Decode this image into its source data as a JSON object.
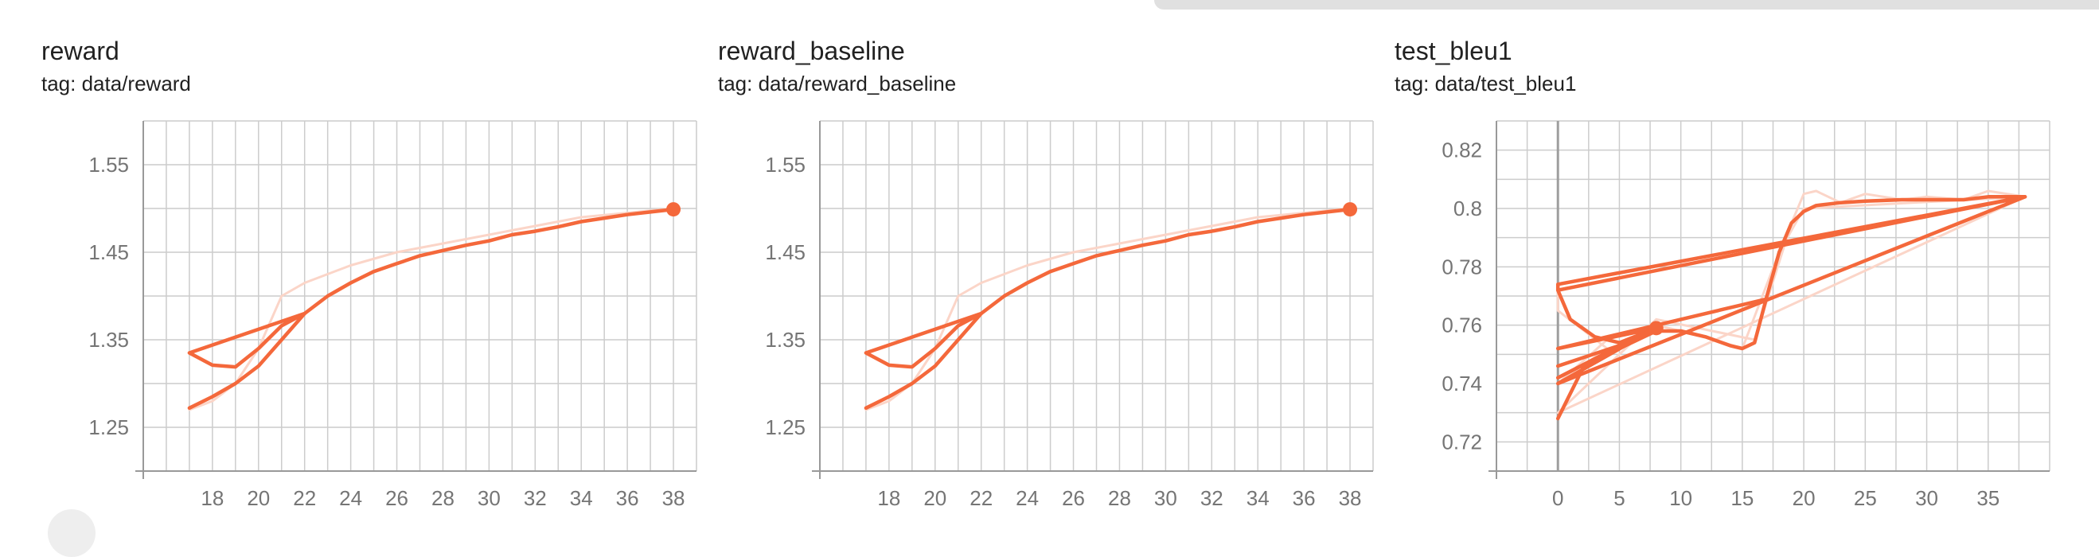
{
  "colors": {
    "line": "#f4683b",
    "line_light": "#fbd5c8",
    "grid": "#cccccc",
    "axis": "#999999",
    "text": "#757575"
  },
  "cards": [
    {
      "title": "reward",
      "tag": "tag: data/reward"
    },
    {
      "title": "reward_baseline",
      "tag": "tag: data/reward_baseline"
    },
    {
      "title": "test_bleu1",
      "tag": "tag: data/test_bleu1"
    }
  ],
  "chart_data": [
    {
      "type": "line",
      "title": "reward",
      "xlim": [
        15,
        39
      ],
      "ylim": [
        1.2,
        1.6
      ],
      "x_ticks": [
        18,
        20,
        22,
        24,
        26,
        28,
        30,
        32,
        34,
        36,
        38
      ],
      "y_ticks": [
        1.25,
        1.35,
        1.45,
        1.55
      ],
      "grid": true,
      "series": [
        {
          "role": "raw",
          "points": [
            [
              17,
              1.27
            ],
            [
              18,
              1.28
            ],
            [
              19,
              1.3
            ],
            [
              20,
              1.34
            ],
            [
              21,
              1.4
            ],
            [
              22,
              1.415
            ],
            [
              24,
              1.435
            ],
            [
              26,
              1.45
            ],
            [
              28,
              1.46
            ],
            [
              30,
              1.47
            ],
            [
              32,
              1.48
            ],
            [
              34,
              1.49
            ],
            [
              36,
              1.495
            ],
            [
              38,
              1.5
            ]
          ]
        },
        {
          "role": "smoothed",
          "points": [
            [
              17,
              1.272
            ],
            [
              18,
              1.285
            ],
            [
              19,
              1.3
            ],
            [
              20,
              1.32
            ],
            [
              21,
              1.35
            ],
            [
              22,
              1.38
            ],
            [
              23,
              1.4
            ],
            [
              24,
              1.415
            ],
            [
              25,
              1.428
            ],
            [
              26,
              1.437
            ],
            [
              27,
              1.446
            ],
            [
              28,
              1.452
            ],
            [
              29,
              1.458
            ],
            [
              30,
              1.463
            ],
            [
              31,
              1.47
            ],
            [
              32,
              1.474
            ],
            [
              33,
              1.479
            ],
            [
              34,
              1.485
            ],
            [
              35,
              1.489
            ],
            [
              36,
              1.493
            ],
            [
              37,
              1.496
            ],
            [
              38,
              1.499
            ]
          ]
        },
        {
          "role": "smoothed",
          "points": [
            [
              17,
              1.335
            ],
            [
              18,
              1.321
            ],
            [
              19,
              1.319
            ],
            [
              20,
              1.34
            ],
            [
              21,
              1.366
            ],
            [
              22,
              1.38
            ],
            [
              17,
              1.335
            ]
          ]
        }
      ],
      "marker": [
        38,
        1.499
      ]
    },
    {
      "type": "line",
      "title": "reward_baseline",
      "xlim": [
        15,
        39
      ],
      "ylim": [
        1.2,
        1.6
      ],
      "x_ticks": [
        18,
        20,
        22,
        24,
        26,
        28,
        30,
        32,
        34,
        36,
        38
      ],
      "y_ticks": [
        1.25,
        1.35,
        1.45,
        1.55
      ],
      "grid": true,
      "series": [
        {
          "role": "raw",
          "points": [
            [
              17,
              1.27
            ],
            [
              18,
              1.28
            ],
            [
              19,
              1.3
            ],
            [
              20,
              1.34
            ],
            [
              21,
              1.4
            ],
            [
              22,
              1.415
            ],
            [
              24,
              1.435
            ],
            [
              26,
              1.45
            ],
            [
              28,
              1.46
            ],
            [
              30,
              1.47
            ],
            [
              32,
              1.48
            ],
            [
              34,
              1.49
            ],
            [
              36,
              1.495
            ],
            [
              38,
              1.5
            ]
          ]
        },
        {
          "role": "smoothed",
          "points": [
            [
              17,
              1.272
            ],
            [
              18,
              1.285
            ],
            [
              19,
              1.3
            ],
            [
              20,
              1.32
            ],
            [
              21,
              1.35
            ],
            [
              22,
              1.38
            ],
            [
              23,
              1.4
            ],
            [
              24,
              1.415
            ],
            [
              25,
              1.428
            ],
            [
              26,
              1.437
            ],
            [
              27,
              1.446
            ],
            [
              28,
              1.452
            ],
            [
              29,
              1.458
            ],
            [
              30,
              1.463
            ],
            [
              31,
              1.47
            ],
            [
              32,
              1.474
            ],
            [
              33,
              1.479
            ],
            [
              34,
              1.485
            ],
            [
              35,
              1.489
            ],
            [
              36,
              1.493
            ],
            [
              37,
              1.496
            ],
            [
              38,
              1.499
            ]
          ]
        },
        {
          "role": "smoothed",
          "points": [
            [
              17,
              1.335
            ],
            [
              18,
              1.321
            ],
            [
              19,
              1.319
            ],
            [
              20,
              1.34
            ],
            [
              21,
              1.366
            ],
            [
              22,
              1.38
            ],
            [
              17,
              1.335
            ]
          ]
        }
      ],
      "marker": [
        38,
        1.499
      ]
    },
    {
      "type": "line",
      "title": "test_bleu1",
      "xlim": [
        -5,
        40
      ],
      "ylim": [
        0.71,
        0.83
      ],
      "x_ticks": [
        0,
        5,
        10,
        15,
        20,
        25,
        30,
        35
      ],
      "y_ticks": [
        0.72,
        0.74,
        0.76,
        0.78,
        0.8,
        0.82
      ],
      "grid": true,
      "series": [
        {
          "role": "raw",
          "points": [
            [
              0,
              0.73
            ],
            [
              8,
              0.762
            ],
            [
              16,
              0.755
            ],
            [
              19,
              0.795
            ],
            [
              20,
              0.805
            ],
            [
              21,
              0.806
            ],
            [
              23,
              0.802
            ],
            [
              25,
              0.805
            ],
            [
              28,
              0.803
            ],
            [
              30,
              0.804
            ],
            [
              33,
              0.803
            ],
            [
              35,
              0.806
            ],
            [
              38,
              0.804
            ],
            [
              0,
              0.73
            ]
          ]
        },
        {
          "role": "raw",
          "points": [
            [
              0,
              0.74
            ],
            [
              4,
              0.755
            ],
            [
              8,
              0.76
            ],
            [
              12,
              0.756
            ],
            [
              15,
              0.752
            ],
            [
              18,
              0.785
            ],
            [
              20,
              0.8
            ],
            [
              38,
              0.804
            ],
            [
              0,
              0.774
            ],
            [
              0,
              0.765
            ],
            [
              4,
              0.752
            ],
            [
              0,
              0.74
            ]
          ]
        },
        {
          "role": "smoothed",
          "points": [
            [
              0,
              0.728
            ],
            [
              2,
              0.745
            ],
            [
              5,
              0.752
            ],
            [
              8,
              0.758
            ],
            [
              10,
              0.758
            ],
            [
              12,
              0.756
            ],
            [
              14,
              0.753
            ],
            [
              15,
              0.752
            ],
            [
              16,
              0.754
            ],
            [
              17,
              0.77
            ],
            [
              18,
              0.785
            ],
            [
              19,
              0.795
            ],
            [
              20,
              0.799
            ],
            [
              21,
              0.801
            ],
            [
              23,
              0.802
            ],
            [
              25,
              0.8025
            ],
            [
              28,
              0.803
            ],
            [
              30,
              0.803
            ],
            [
              33,
              0.803
            ],
            [
              35,
              0.804
            ],
            [
              38,
              0.804
            ],
            [
              0,
              0.774
            ],
            [
              0,
              0.772
            ],
            [
              1,
              0.762
            ],
            [
              3,
              0.756
            ],
            [
              5,
              0.754
            ],
            [
              8,
              0.759
            ],
            [
              0,
              0.752
            ],
            [
              17,
              0.769
            ]
          ]
        },
        {
          "role": "smoothed",
          "points": [
            [
              0,
              0.746
            ],
            [
              5,
              0.753
            ],
            [
              8,
              0.759
            ],
            [
              0,
              0.742
            ],
            [
              6,
              0.755
            ],
            [
              8,
              0.759
            ],
            [
              0,
              0.74
            ],
            [
              38,
              0.804
            ],
            [
              0,
              0.772
            ]
          ]
        }
      ],
      "marker": [
        8,
        0.759
      ],
      "zero_line": true
    }
  ]
}
